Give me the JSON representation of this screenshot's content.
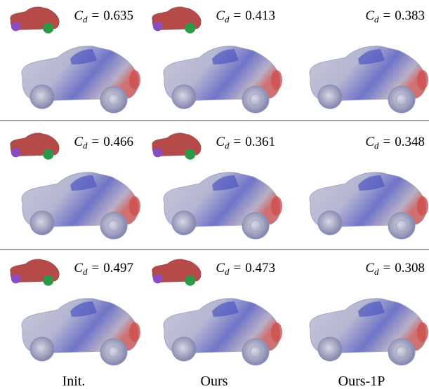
{
  "columns": [
    "Init.",
    "Ours",
    "Ours-1P"
  ],
  "metric": {
    "symbol": "C",
    "subscript": "d",
    "relation": "="
  },
  "rows": [
    {
      "cd": [
        0.635,
        0.413,
        0.383
      ]
    },
    {
      "cd": [
        0.466,
        0.361,
        0.348
      ]
    },
    {
      "cd": [
        0.497,
        0.473,
        0.308
      ]
    }
  ]
}
